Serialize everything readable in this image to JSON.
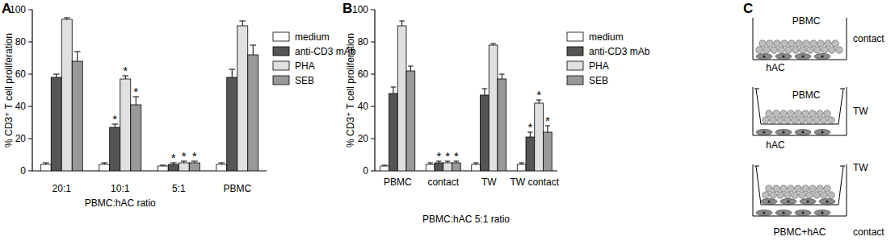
{
  "chart_data": [
    {
      "type": "bar",
      "title": "A",
      "x_label": "PBMC:hAC ratio",
      "y_label": "% CD3⁺ T cell proliferation",
      "categories": [
        "20:1",
        "10:1",
        "5:1",
        "PBMC"
      ],
      "series": [
        {
          "name": "medium",
          "color": "#ffffff",
          "values": [
            4,
            4,
            3,
            4
          ],
          "errors": [
            1,
            1,
            0.5,
            1
          ],
          "significance": [
            null,
            null,
            null,
            null
          ]
        },
        {
          "name": "anti-CD3 mAb",
          "color": "#555555",
          "values": [
            58,
            27,
            4,
            58
          ],
          "errors": [
            2,
            2,
            1,
            5
          ],
          "significance": [
            null,
            "*",
            "*",
            null
          ]
        },
        {
          "name": "PHA",
          "color": "#e0e0e0",
          "values": [
            94,
            57,
            5,
            90
          ],
          "errors": [
            1,
            2,
            1,
            3
          ],
          "significance": [
            null,
            "*",
            "*",
            null
          ]
        },
        {
          "name": "SEB",
          "color": "#999999",
          "values": [
            68,
            41,
            5,
            72
          ],
          "errors": [
            6,
            5,
            1,
            6
          ],
          "significance": [
            null,
            "*",
            "*",
            null
          ]
        }
      ],
      "ylim": [
        0,
        100
      ],
      "yticks": [
        0,
        20,
        40,
        60,
        80,
        100
      ],
      "grid": false,
      "legend": "right"
    },
    {
      "type": "bar",
      "title": "B",
      "x_label": "PBMC:hAC 5:1 ratio",
      "y_label": "% CD3⁺ T cell proliferation",
      "categories": [
        "PBMC",
        "contact",
        "TW",
        "TW contact"
      ],
      "series": [
        {
          "name": "medium",
          "color": "#ffffff",
          "values": [
            3,
            4,
            4,
            4
          ],
          "errors": [
            0.5,
            1,
            1,
            1
          ],
          "significance": [
            null,
            null,
            null,
            null
          ]
        },
        {
          "name": "anti-CD3 mAb",
          "color": "#555555",
          "values": [
            48,
            5,
            47,
            21
          ],
          "errors": [
            4,
            1,
            4,
            3
          ],
          "significance": [
            null,
            "*",
            null,
            "*"
          ]
        },
        {
          "name": "PHA",
          "color": "#e0e0e0",
          "values": [
            90,
            5,
            78,
            42
          ],
          "errors": [
            3,
            1,
            1,
            2
          ],
          "significance": [
            null,
            "*",
            null,
            "*"
          ]
        },
        {
          "name": "SEB",
          "color": "#999999",
          "values": [
            62,
            5,
            57,
            24
          ],
          "errors": [
            3,
            1,
            3,
            4
          ],
          "significance": [
            null,
            "*",
            null,
            "*"
          ]
        }
      ],
      "ylim": [
        0,
        100
      ],
      "yticks": [
        0,
        20,
        40,
        60,
        80,
        100
      ],
      "grid": false,
      "legend": "right"
    }
  ],
  "diagram": {
    "title": "C",
    "items": [
      {
        "upper": "PBMC",
        "lower": "hAC",
        "side": [
          "contact"
        ]
      },
      {
        "upper": "PBMC",
        "lower": "hAC",
        "side": [
          "TW"
        ]
      },
      {
        "upper": null,
        "lower": "PBMC+hAC",
        "side": [
          "TW",
          "contact"
        ]
      }
    ]
  }
}
